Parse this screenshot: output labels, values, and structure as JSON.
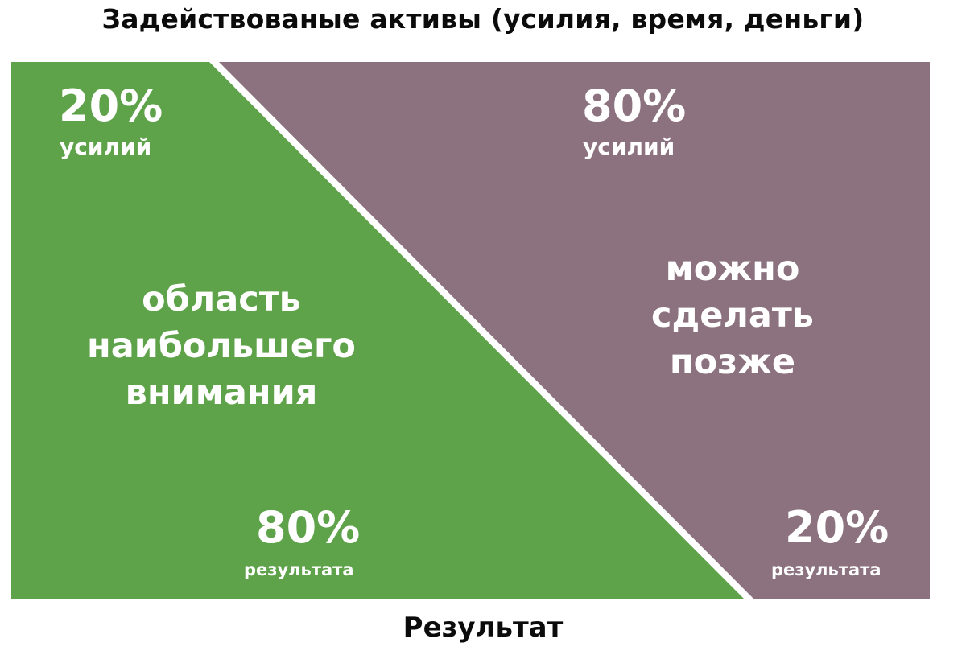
{
  "header": {
    "title": "Задействованые активы (усилия, время, деньги)"
  },
  "footer": {
    "title": "Результат"
  },
  "colors": {
    "green": "#5ea24a",
    "purple": "#8b727e",
    "text": "#0b0b0b",
    "label": "#ffffff"
  },
  "green_region": {
    "effort_percent": "20%",
    "effort_label": "усилий",
    "result_percent": "80%",
    "result_label": "результата",
    "description": [
      "область",
      "наибольшего",
      "внимания"
    ]
  },
  "purple_region": {
    "effort_percent": "80%",
    "effort_label": "усилий",
    "result_percent": "20%",
    "result_label": "результата",
    "description": [
      "можно",
      "сделать",
      "позже"
    ]
  }
}
